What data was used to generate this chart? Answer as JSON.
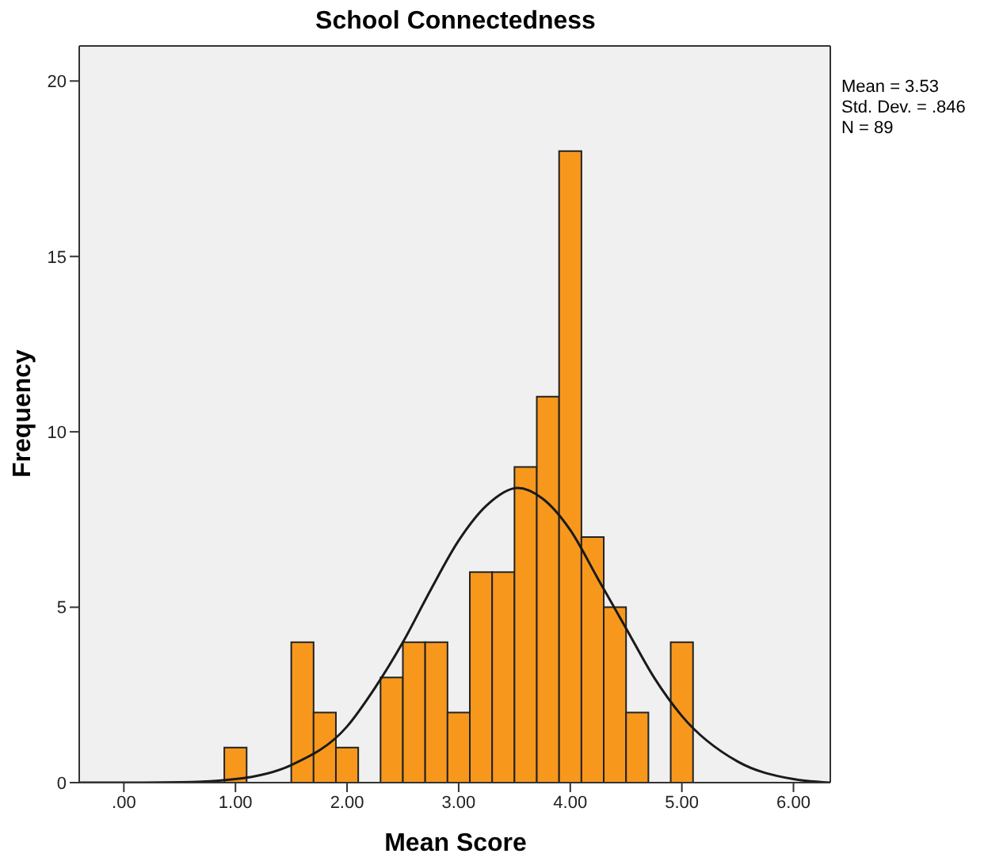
{
  "chart_data": {
    "type": "histogram",
    "title": "School Connectedness",
    "xlabel": "Mean Score",
    "ylabel": "Frequency",
    "bins": [
      0.9,
      1.1,
      1.3,
      1.5,
      1.7,
      1.9,
      2.1,
      2.3,
      2.5,
      2.7,
      2.9,
      3.1,
      3.3,
      3.5,
      3.7,
      3.9,
      4.1,
      4.3,
      4.5,
      4.7,
      4.9,
      5.1
    ],
    "values": [
      1,
      0,
      0,
      4,
      2,
      1,
      0,
      3,
      4,
      4,
      2,
      6,
      6,
      9,
      11,
      18,
      7,
      5,
      2,
      0,
      4
    ],
    "color": "#f7981d",
    "series": [
      {
        "type": "line",
        "color": "#1a1a1a",
        "x": [
          -0.4,
          0,
          0.5,
          1,
          1.5,
          2,
          2.25,
          2.5,
          2.75,
          3,
          3.25,
          3.53,
          3.75,
          4,
          4.25,
          4.5,
          4.75,
          5,
          5.5,
          6,
          6.33
        ],
        "values": [
          0,
          0,
          0.01,
          0.1,
          0.5,
          1.6,
          2.7,
          4,
          5.5,
          6.9,
          7.9,
          8.4,
          8.1,
          7.2,
          5.8,
          4.4,
          3,
          1.9,
          0.6,
          0.1,
          0
        ]
      }
    ],
    "xlim": [
      -0.4,
      6.33
    ],
    "ylim": [
      0,
      21
    ],
    "xticks": [
      {
        "value": 0,
        "label": ".00"
      },
      {
        "value": 1,
        "label": "1.00"
      },
      {
        "value": 2,
        "label": "2.00"
      },
      {
        "value": 3,
        "label": "3.00"
      },
      {
        "value": 4,
        "label": "4.00"
      },
      {
        "value": 5,
        "label": "5.00"
      },
      {
        "value": 6,
        "label": "6.00"
      }
    ],
    "yticks": [
      0,
      5,
      10,
      15,
      20
    ],
    "grid": false,
    "marker": "none",
    "line_style": "solid",
    "annotations": [
      "Mean = 3.53",
      "Std. Dev. = .846",
      "N = 89"
    ]
  }
}
